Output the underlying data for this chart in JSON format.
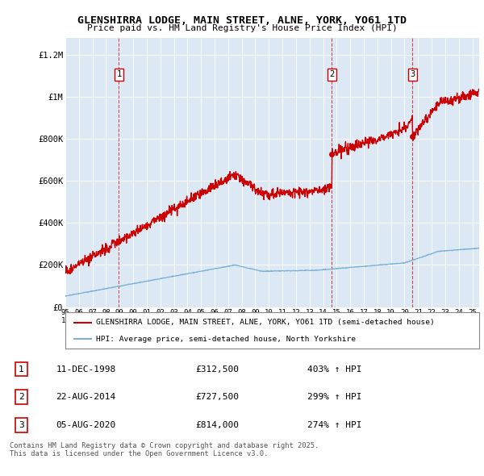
{
  "title": "GLENSHIRRA LODGE, MAIN STREET, ALNE, YORK, YO61 1TD",
  "subtitle": "Price paid vs. HM Land Registry's House Price Index (HPI)",
  "legend_red": "GLENSHIRRA LODGE, MAIN STREET, ALNE, YORK, YO61 1TD (semi-detached house)",
  "legend_blue": "HPI: Average price, semi-detached house, North Yorkshire",
  "footer": "Contains HM Land Registry data © Crown copyright and database right 2025.\nThis data is licensed under the Open Government Licence v3.0.",
  "sale_points": [
    {
      "label": "1",
      "date": "11-DEC-1998",
      "price": 312500,
      "pct": "403%",
      "year": 1998.95
    },
    {
      "label": "2",
      "date": "22-AUG-2014",
      "price": 727500,
      "pct": "299%",
      "year": 2014.64
    },
    {
      "label": "3",
      "date": "05-AUG-2020",
      "price": 814000,
      "pct": "274%",
      "year": 2020.59
    }
  ],
  "plot_bg": "#dce9f5",
  "red_color": "#cc0000",
  "blue_color": "#7ab0d4",
  "ylim": [
    0,
    1280000
  ],
  "xlim": [
    1995,
    2025.5
  ],
  "yticks": [
    0,
    200000,
    400000,
    600000,
    800000,
    1000000,
    1200000
  ],
  "ytick_labels": [
    "£0",
    "£200K",
    "£400K",
    "£600K",
    "£800K",
    "£1M",
    "£1.2M"
  ]
}
